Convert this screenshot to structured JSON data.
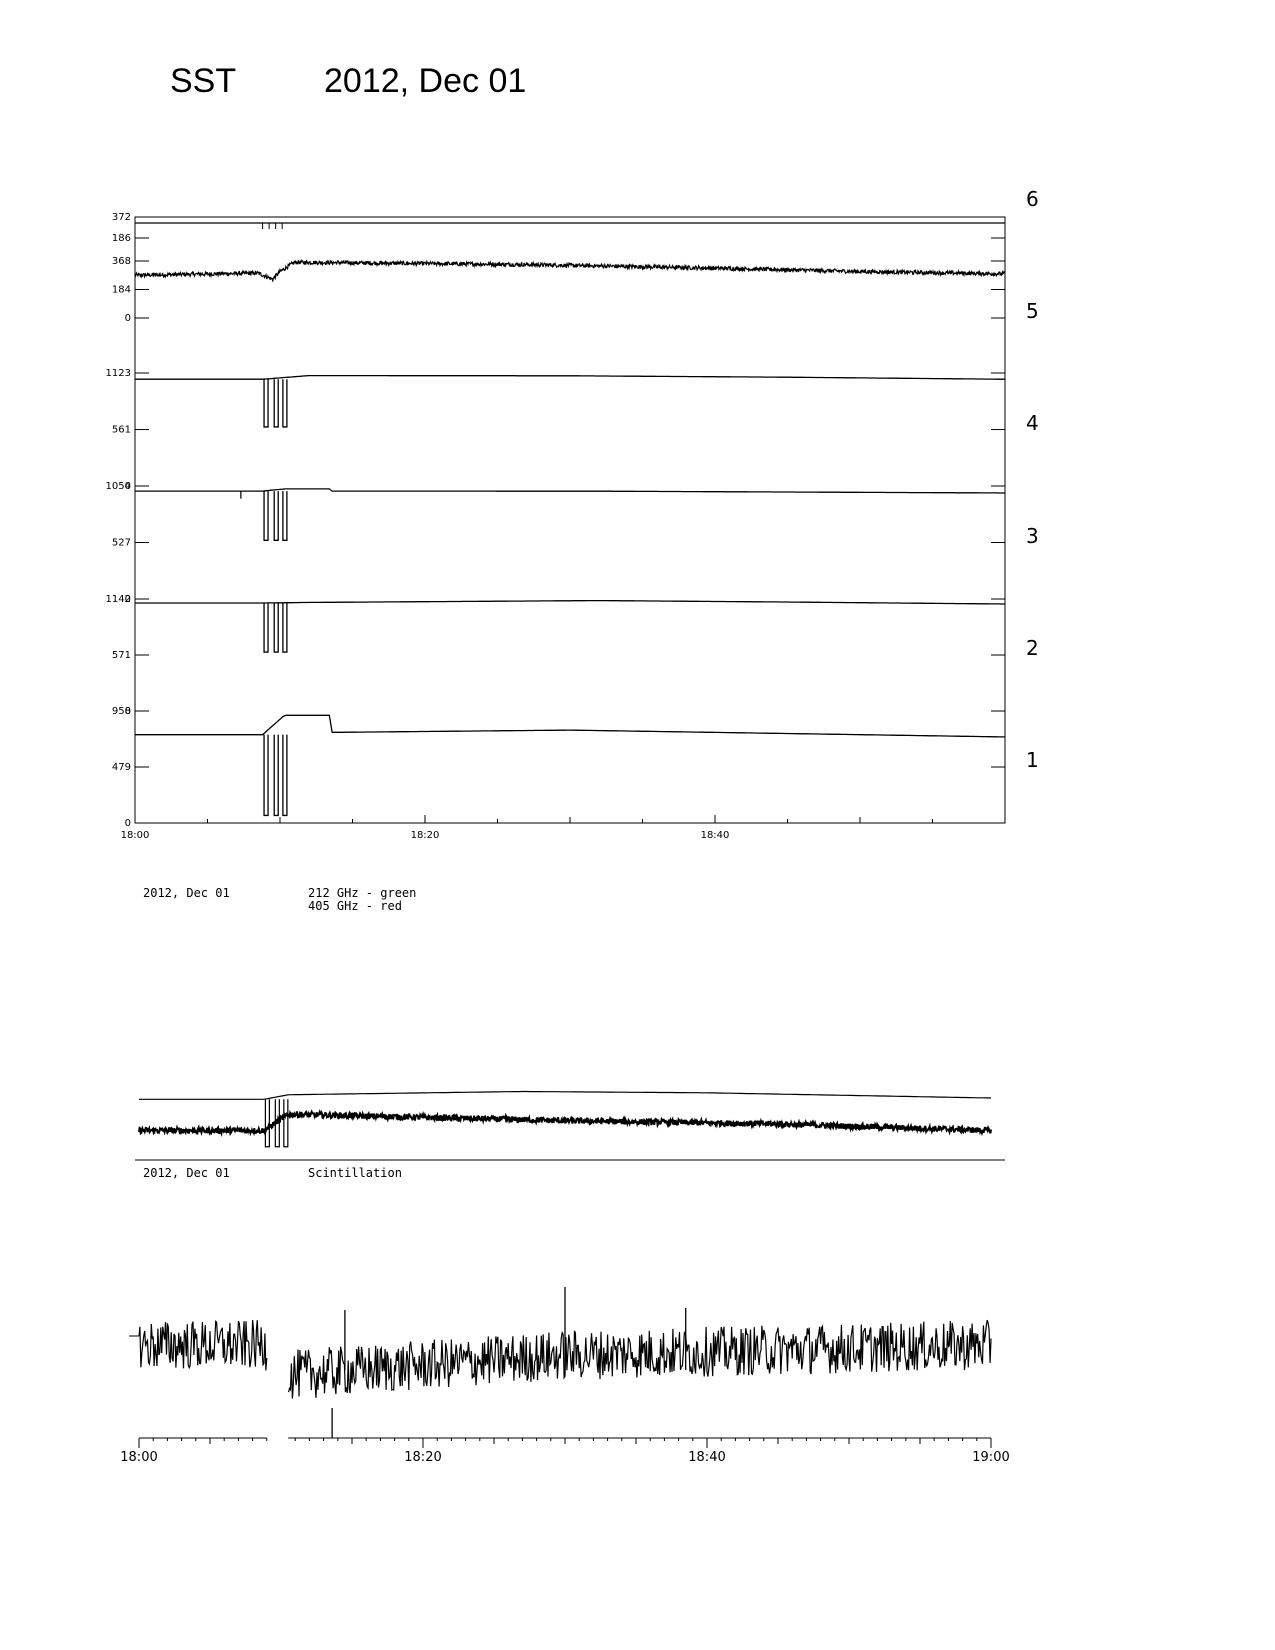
{
  "header": {
    "instrument": "SST",
    "date": "2012, Dec 01"
  },
  "panel_numbers": [
    "6",
    "5",
    "4",
    "3",
    "2",
    "1"
  ],
  "captions": {
    "freq_date": "2012, Dec 01",
    "freq_line1": "212 GHz - green",
    "freq_line2": "405 GHz - red",
    "scint_date": "2012, Dec 01",
    "scint_label": "Scintillation"
  },
  "chart_data": [
    {
      "type": "line",
      "title": "",
      "x_start": "18:00",
      "x_end": "19:00",
      "x_ticks": [
        "18:00",
        "18:20",
        "18:40"
      ],
      "channels": [
        {
          "name": "6",
          "ylim": [
            186,
            372
          ],
          "tick_labels": [
            "186",
            "372"
          ],
          "baseline": 358,
          "events": [
            {
              "t_min": 8.8,
              "t_end_min": 10.2,
              "type": "small dips",
              "value": 330
            }
          ]
        },
        {
          "name": "5",
          "ylim": [
            0,
            368
          ],
          "tick_labels": [
            "0",
            "184",
            "368"
          ],
          "noisy": true,
          "profile": [
            [
              0,
              276
            ],
            [
              8.5,
              290
            ],
            [
              9.5,
              250
            ],
            [
              10,
              300
            ],
            [
              11,
              360
            ],
            [
              27,
              345
            ],
            [
              40,
              322
            ],
            [
              50,
              300
            ],
            [
              60,
              285
            ]
          ]
        },
        {
          "name": "4",
          "ylim": [
            0,
            1123
          ],
          "tick_labels": [
            "0",
            "561",
            "1123"
          ],
          "profile": [
            [
              0,
              1000
            ],
            [
              8.8,
              1000
            ],
            [
              12,
              1072
            ],
            [
              30,
              1068
            ],
            [
              45,
              1040
            ],
            [
              60,
              1000
            ]
          ],
          "dips_min": [
            8.9,
            9.6,
            10.2
          ],
          "dip_value": 60
        },
        {
          "name": "3",
          "ylim": [
            0,
            1054
          ],
          "tick_labels": [
            "0",
            "527",
            "1054"
          ],
          "profile": [
            [
              0,
              960
            ],
            [
              8.8,
              960
            ],
            [
              10.3,
              1000
            ],
            [
              13.4,
              1000
            ],
            [
              13.5,
              960
            ],
            [
              32,
              958
            ],
            [
              60,
              925
            ]
          ],
          "spike_min": 7.3,
          "spike_value": 820,
          "dips_min": [
            8.9,
            9.6,
            10.2
          ],
          "dip_value": 50
        },
        {
          "name": "2",
          "ylim": [
            0,
            1142
          ],
          "tick_labels": [
            "0",
            "571",
            "1142"
          ],
          "profile": [
            [
              0,
              1060
            ],
            [
              8.8,
              1060
            ],
            [
              12,
              1072
            ],
            [
              32,
              1110
            ],
            [
              45,
              1080
            ],
            [
              60,
              1040
            ]
          ],
          "dips_min": [
            8.9,
            9.6,
            10.2
          ],
          "dip_value": 60
        },
        {
          "name": "1",
          "ylim": [
            0,
            958
          ],
          "tick_labels": [
            "0",
            "479",
            "958"
          ],
          "profile": [
            [
              0,
              750
            ],
            [
              8.8,
              750
            ],
            [
              10.3,
              920
            ],
            [
              13.4,
              920
            ],
            [
              13.5,
              770
            ],
            [
              30,
              790
            ],
            [
              45,
              760
            ],
            [
              60,
              730
            ]
          ],
          "dips_min": [
            8.9,
            9.6,
            10.2
          ],
          "dip_value": 40
        }
      ]
    },
    {
      "type": "line",
      "title": "",
      "series": [
        {
          "name": "212 GHz",
          "color": "green",
          "profile": [
            [
              0,
              0.78
            ],
            [
              8.8,
              0.78
            ],
            [
              10.5,
              0.85
            ],
            [
              27,
              0.9
            ],
            [
              40,
              0.88
            ],
            [
              60,
              0.8
            ]
          ]
        },
        {
          "name": "405 GHz",
          "color": "red",
          "noisy": true,
          "profile": [
            [
              0,
              0.3
            ],
            [
              8.8,
              0.3
            ],
            [
              10.5,
              0.55
            ],
            [
              30,
              0.45
            ],
            [
              45,
              0.4
            ],
            [
              60,
              0.3
            ]
          ]
        }
      ],
      "dips_min": [
        8.9,
        9.6,
        10.2
      ]
    },
    {
      "type": "line",
      "title": "",
      "x_start": "18:00",
      "x_end": "19:00",
      "x_ticks": [
        "18:00",
        "18:20",
        "18:40",
        "19:00"
      ],
      "gap_min": [
        9.0,
        10.5
      ],
      "series": [
        {
          "name": "",
          "noisy": true,
          "profile": [
            [
              0,
              0.55
            ],
            [
              8.9,
              0.55
            ],
            [
              10.6,
              0.25
            ],
            [
              30,
              0.45
            ],
            [
              60,
              0.55
            ]
          ]
        }
      ],
      "spikes_min": [
        14.5,
        30,
        38.5
      ],
      "lower_trace_spike_min": 13.6
    }
  ]
}
